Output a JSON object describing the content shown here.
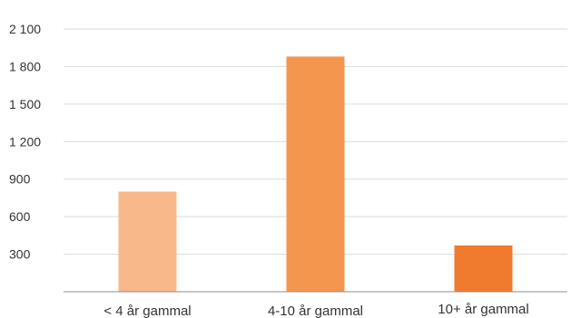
{
  "chart_data": {
    "type": "bar",
    "categories": [
      "< 4 år gammal",
      "4-10 år gammal",
      "10+ år gammal"
    ],
    "values": [
      800,
      1880,
      370
    ],
    "y_ticks": [
      "2 100",
      "1 800",
      "1 500",
      "1 200",
      "900",
      "600",
      "300"
    ],
    "y_tick_values": [
      2100,
      1800,
      1500,
      1200,
      900,
      600,
      300
    ],
    "ylim": [
      0,
      2100
    ],
    "grid": true,
    "colors": [
      "#f8b88a",
      "#f5964f",
      "#f07b2e"
    ],
    "gridline_color": "#d9d9d9",
    "axis_color": "#8c8c8c"
  }
}
